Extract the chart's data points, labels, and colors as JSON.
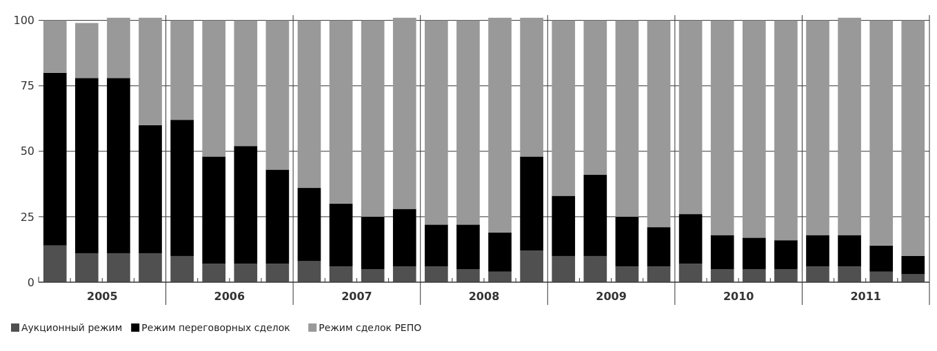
{
  "chart_data": {
    "type": "bar",
    "stacked": true,
    "categories": [
      null,
      null,
      null,
      null,
      null,
      null,
      null,
      null,
      null,
      null,
      null,
      null,
      null,
      null,
      null,
      null,
      null,
      null,
      null,
      null,
      null,
      null,
      null,
      null,
      null,
      null,
      null,
      null
    ],
    "series": [
      {
        "name": "Аукционный режим",
        "color": "#505050",
        "values": [
          14,
          11,
          11,
          11,
          10,
          7,
          7,
          7,
          8,
          6,
          5,
          6,
          6,
          5,
          4,
          12,
          10,
          10,
          6,
          6,
          7,
          5,
          5,
          5,
          6,
          6,
          4,
          3
        ]
      },
      {
        "name": "Режим переговорных сделок",
        "color": "#000000",
        "values": [
          66,
          67,
          67,
          49,
          52,
          41,
          45,
          36,
          28,
          24,
          20,
          22,
          16,
          17,
          15,
          36,
          23,
          31,
          19,
          15,
          19,
          13,
          12,
          11,
          12,
          12,
          10,
          7
        ]
      },
      {
        "name": "Режим сделок РЕПО",
        "color": "#999999",
        "values": [
          20,
          21,
          23,
          41,
          38,
          52,
          48,
          57,
          64,
          70,
          75,
          73,
          78,
          78,
          82,
          53,
          67,
          59,
          75,
          79,
          74,
          82,
          83,
          84,
          82,
          83,
          86,
          90
        ]
      }
    ],
    "ylim": [
      0,
      102
    ],
    "yticks": [
      0,
      25,
      50,
      75,
      100
    ],
    "grid": "y",
    "legend": "bottom",
    "annotations": [
      "2005",
      "2006",
      "2007",
      "2008",
      "2009",
      "2010",
      "2011"
    ]
  }
}
